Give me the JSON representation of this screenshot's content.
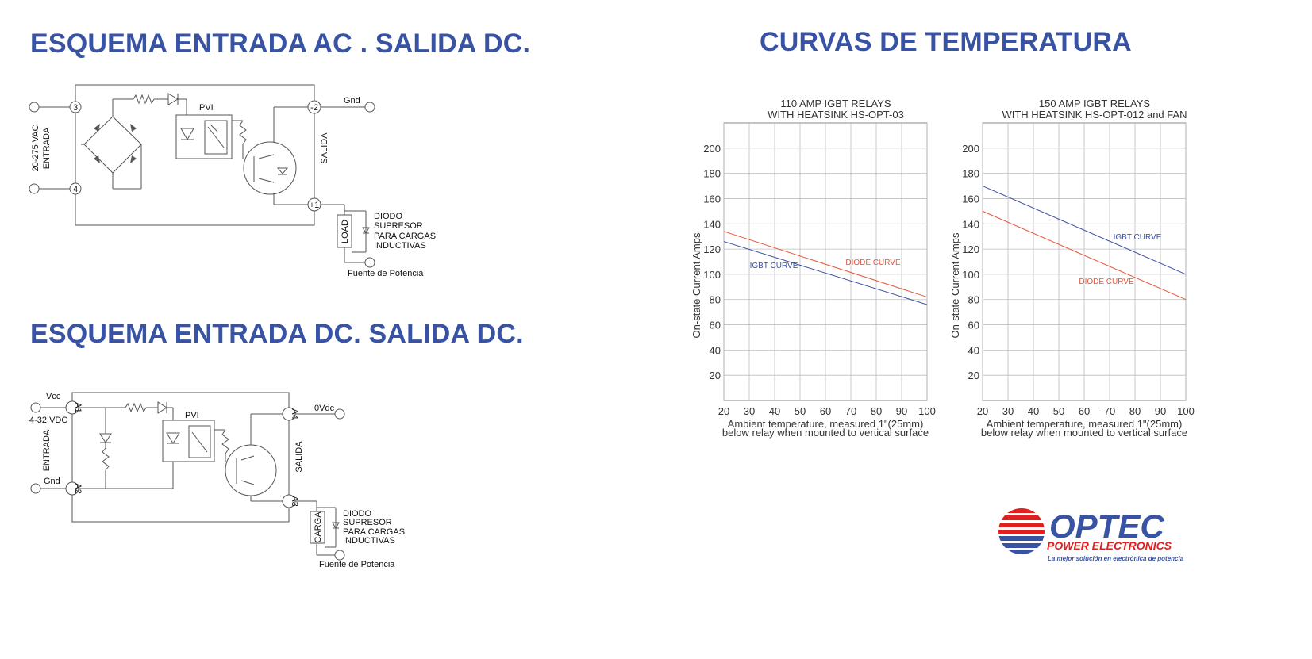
{
  "headings": {
    "ac": "ESQUEMA ENTRADA AC . SALIDA DC.",
    "dc": "ESQUEMA ENTRADA DC. SALIDA DC.",
    "curves": "CURVAS DE TEMPERATURA"
  },
  "diagram_ac": {
    "pin_in1": "3",
    "pin_in2": "4",
    "pin_out_neg": "-2",
    "pin_out_pos": "+1",
    "input_label_1": "20-275 VAC",
    "input_label_2": "ENTRADA",
    "pvi": "PVI",
    "gnd": "Gnd",
    "salida": "SALIDA",
    "load": "LOAD",
    "diode_1": "DIODO",
    "diode_2": "SUPRESOR",
    "diode_3": "PARA CARGAS",
    "diode_4": "INDUCTIVAS",
    "source": "Fuente de Potencia"
  },
  "diagram_dc": {
    "vcc": "Vcc",
    "vdc_range": "4-32 VDC",
    "entrada": "ENTRADA",
    "gnd": "Gnd",
    "pin_a1": "A1",
    "pin_a2": "A2",
    "pin_a3": "A3",
    "pin_a4": "A4",
    "pvi": "PVI",
    "ovdc": "0Vdc",
    "salida": "SALIDA",
    "carga": "CARGA",
    "diode_1": "DIODO",
    "diode_2": "SUPRESOR",
    "diode_3": "PARA CARGAS",
    "diode_4": "INDUCTIVAS",
    "source": "Fuente de Potencia"
  },
  "chart_data": [
    {
      "type": "line",
      "title": [
        "110 AMP IGBT RELAYS",
        "WITH HEATSINK HS-OPT-03"
      ],
      "xlabel": [
        "Ambient temperature, measured 1\"(25mm)",
        "below relay when mounted to vertical surface"
      ],
      "ylabel": "On-state Current Amps",
      "x_ticks": [
        20,
        30,
        40,
        50,
        60,
        70,
        80,
        90,
        100
      ],
      "y_ticks": [
        20,
        40,
        60,
        80,
        100,
        120,
        140,
        160,
        180,
        200
      ],
      "xlim": [
        20,
        100
      ],
      "ylim": [
        0,
        220
      ],
      "grid": true,
      "series": [
        {
          "name": "IGBT CURVE",
          "color": "#3b4fa0",
          "x": [
            20,
            100
          ],
          "y": [
            126,
            76
          ]
        },
        {
          "name": "DIODE CURVE",
          "color": "#e8553a",
          "x": [
            20,
            100
          ],
          "y": [
            134,
            82
          ]
        }
      ]
    },
    {
      "type": "line",
      "title": [
        "150 AMP IGBT RELAYS",
        "WITH HEATSINK HS-OPT-012 and FAN"
      ],
      "xlabel": [
        "Ambient temperature, measured 1\"(25mm)",
        "below relay when mounted to vertical surface"
      ],
      "ylabel": "On-state Current Amps",
      "x_ticks": [
        20,
        30,
        40,
        50,
        60,
        70,
        80,
        90,
        100
      ],
      "y_ticks": [
        20,
        40,
        60,
        80,
        100,
        120,
        140,
        160,
        180,
        200
      ],
      "xlim": [
        20,
        100
      ],
      "ylim": [
        0,
        220
      ],
      "grid": true,
      "series": [
        {
          "name": "IGBT CURVE",
          "color": "#3b4fa0",
          "x": [
            20,
            100
          ],
          "y": [
            170,
            100
          ]
        },
        {
          "name": "DIODE CURVE",
          "color": "#e8553a",
          "x": [
            20,
            100
          ],
          "y": [
            150,
            80
          ]
        }
      ]
    }
  ],
  "logo": {
    "brand": "OPTEC",
    "subtitle": "POWER ELECTRONICS",
    "tagline": "La mejor solución en electrónica de potencia",
    "blue": "#3953a4",
    "red": "#e02020"
  }
}
